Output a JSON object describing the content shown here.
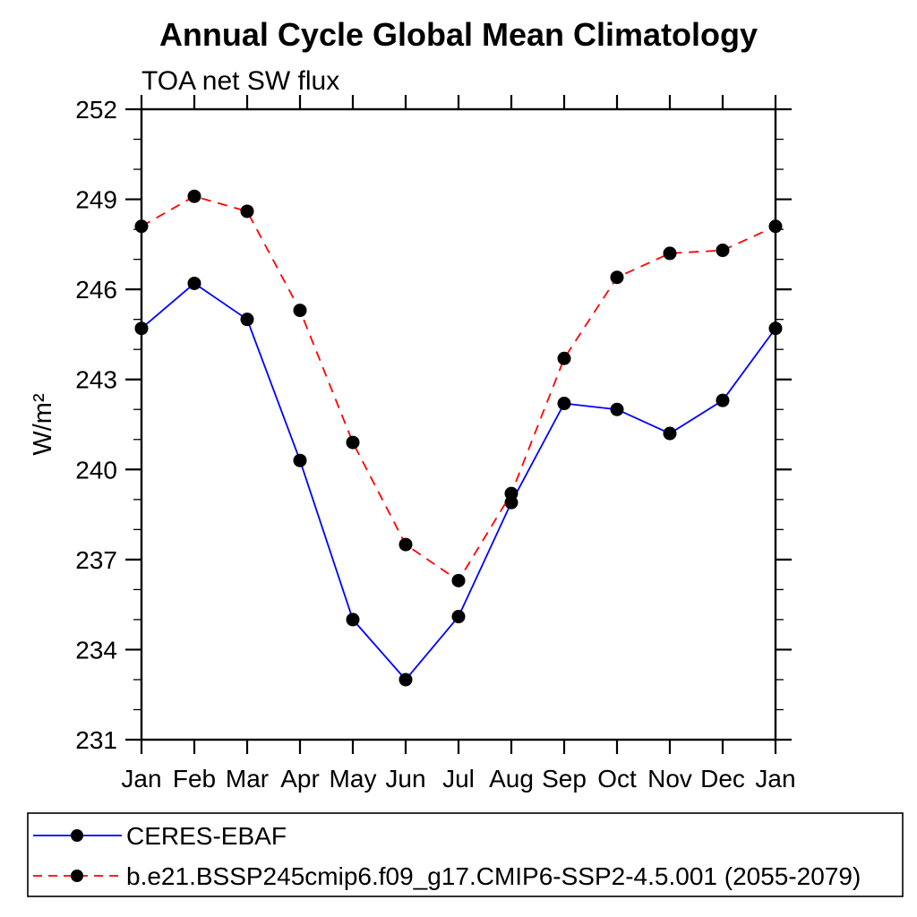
{
  "chart_data": {
    "type": "line",
    "title": "Annual Cycle Global Mean Climatology",
    "subtitle": "TOA net SW flux",
    "ylabel": "W/m²",
    "xlabel": "",
    "categories": [
      "Jan",
      "Feb",
      "Mar",
      "Apr",
      "May",
      "Jun",
      "Jul",
      "Aug",
      "Sep",
      "Oct",
      "Nov",
      "Dec",
      "Jan"
    ],
    "ylim": [
      231,
      252
    ],
    "yticks": [
      231,
      234,
      237,
      240,
      243,
      246,
      249,
      252
    ],
    "yminor_step": 1,
    "grid": false,
    "legend_position": "bottom",
    "colors": {
      "axis": "#000000",
      "background": "#ffffff"
    },
    "series": [
      {
        "name": "CERES-EBAF",
        "line_color": "#0000ff",
        "line_style": "solid",
        "marker": "filled-circle",
        "marker_color": "#000000",
        "values": [
          244.7,
          246.2,
          245.0,
          240.3,
          235.0,
          233.0,
          235.1,
          238.9,
          242.2,
          242.0,
          241.2,
          242.3,
          244.7
        ]
      },
      {
        "name": "b.e21.BSSP245cmip6.f09_g17.CMIP6-SSP2-4.5.001 (2055-2079)",
        "line_color": "#ff0000",
        "line_style": "dashed",
        "marker": "filled-circle",
        "marker_color": "#000000",
        "values": [
          248.1,
          249.1,
          248.6,
          245.3,
          240.9,
          237.5,
          236.3,
          239.2,
          243.7,
          246.4,
          247.2,
          247.3,
          248.1
        ]
      }
    ]
  }
}
